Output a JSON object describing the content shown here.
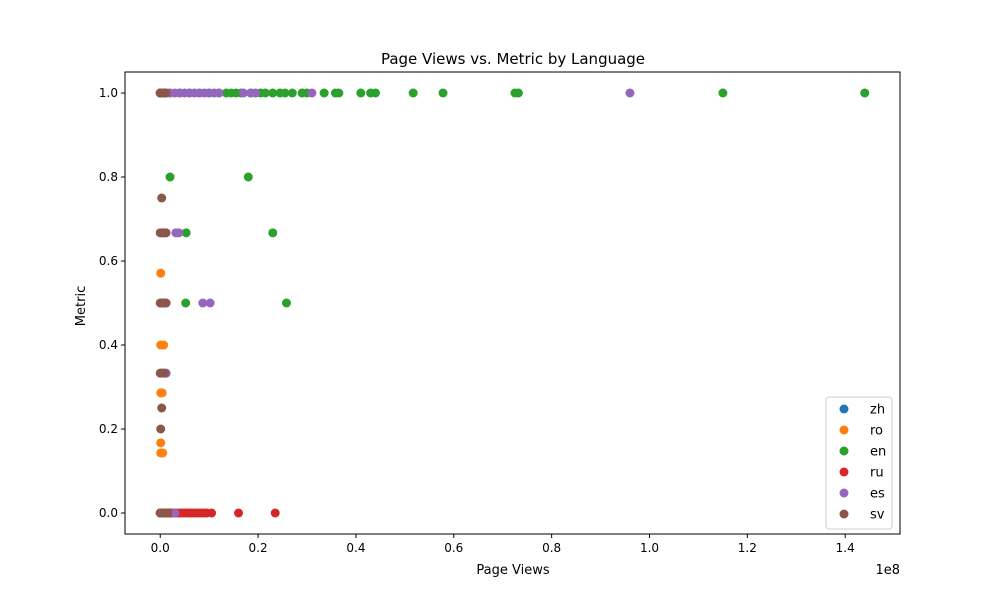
{
  "chart_data": {
    "type": "scatter",
    "title": "Page Views vs. Metric by Language",
    "xlabel": "Page Views",
    "ylabel": "Metric",
    "x_offset_label": "1e8",
    "xlim": [
      -7200000,
      151200000
    ],
    "ylim": [
      -0.05,
      1.05
    ],
    "x_ticks": [
      0,
      20000000,
      40000000,
      60000000,
      80000000,
      100000000,
      120000000,
      140000000
    ],
    "x_tick_labels": [
      "0.0",
      "0.2",
      "0.4",
      "0.6",
      "0.8",
      "1.0",
      "1.2",
      "1.4"
    ],
    "y_ticks": [
      0,
      0.2,
      0.4,
      0.6,
      0.8,
      1.0
    ],
    "y_tick_labels": [
      "0.0",
      "0.2",
      "0.4",
      "0.6",
      "0.8",
      "1.0"
    ],
    "grid": false,
    "legend_position": "bottom-right",
    "series": [
      {
        "name": "zh",
        "color": "#1f77b4",
        "points": [
          [
            0,
            0
          ],
          [
            100000,
            0
          ],
          [
            200000,
            0
          ],
          [
            300000,
            0
          ],
          [
            0,
            1.0
          ],
          [
            150000,
            1.0
          ],
          [
            300000,
            1.0
          ]
        ]
      },
      {
        "name": "ro",
        "color": "#ff7f0e",
        "points": [
          [
            0,
            0
          ],
          [
            200000,
            0
          ],
          [
            500000,
            0
          ],
          [
            100000,
            0.143
          ],
          [
            500000,
            0.143
          ],
          [
            100000,
            0.167
          ],
          [
            100000,
            0.286
          ],
          [
            400000,
            0.286
          ],
          [
            100000,
            0.4
          ],
          [
            700000,
            0.4
          ],
          [
            100000,
            0.571
          ],
          [
            0,
            1.0
          ],
          [
            300000,
            1.0
          ],
          [
            600000,
            1.0
          ]
        ]
      },
      {
        "name": "en",
        "color": "#2ca02c",
        "points": [
          [
            500000,
            0
          ],
          [
            1000000,
            0
          ],
          [
            2000000,
            0
          ],
          [
            2000000,
            0.8
          ],
          [
            18000000,
            0.8
          ],
          [
            5300000,
            0.667
          ],
          [
            23000000,
            0.667
          ],
          [
            5200000,
            0.5
          ],
          [
            25800000,
            0.5
          ],
          [
            0,
            1.0
          ],
          [
            1000000,
            1.0
          ],
          [
            2000000,
            1.0
          ],
          [
            4000000,
            1.0
          ],
          [
            6000000,
            1.0
          ],
          [
            8000000,
            1.0
          ],
          [
            10000000,
            1.0
          ],
          [
            12000000,
            1.0
          ],
          [
            13500000,
            1.0
          ],
          [
            14500000,
            1.0
          ],
          [
            15500000,
            1.0
          ],
          [
            16500000,
            1.0
          ],
          [
            18500000,
            1.0
          ],
          [
            20500000,
            1.0
          ],
          [
            21500000,
            1.0
          ],
          [
            23000000,
            1.0
          ],
          [
            24500000,
            1.0
          ],
          [
            25500000,
            1.0
          ],
          [
            27000000,
            1.0
          ],
          [
            29000000,
            1.0
          ],
          [
            30000000,
            1.0
          ],
          [
            33500000,
            1.0
          ],
          [
            35800000,
            1.0
          ],
          [
            36500000,
            1.0
          ],
          [
            41000000,
            1.0
          ],
          [
            43000000,
            1.0
          ],
          [
            44000000,
            1.0
          ],
          [
            51700000,
            1.0
          ],
          [
            57800000,
            1.0
          ],
          [
            72500000,
            1.0
          ],
          [
            73200000,
            1.0
          ],
          [
            115000000,
            1.0
          ],
          [
            144000000,
            1.0
          ]
        ]
      },
      {
        "name": "ru",
        "color": "#d62728",
        "points": [
          [
            0,
            0
          ],
          [
            500000,
            0
          ],
          [
            1000000,
            0
          ],
          [
            1500000,
            0
          ],
          [
            2000000,
            0
          ],
          [
            2500000,
            0
          ],
          [
            3000000,
            0
          ],
          [
            3500000,
            0
          ],
          [
            4000000,
            0
          ],
          [
            4500000,
            0
          ],
          [
            5000000,
            0
          ],
          [
            5500000,
            0
          ],
          [
            6000000,
            0
          ],
          [
            6500000,
            0
          ],
          [
            7000000,
            0
          ],
          [
            7500000,
            0
          ],
          [
            8000000,
            0
          ],
          [
            8500000,
            0
          ],
          [
            9000000,
            0
          ],
          [
            9500000,
            0
          ],
          [
            10500000,
            0
          ],
          [
            16000000,
            0
          ],
          [
            23500000,
            0
          ]
        ]
      },
      {
        "name": "es",
        "color": "#9467bd",
        "points": [
          [
            3000000,
            0
          ],
          [
            1200000,
            0.333
          ],
          [
            3200000,
            0.667
          ],
          [
            3800000,
            0.667
          ],
          [
            8700000,
            0.5
          ],
          [
            10200000,
            0.5
          ],
          [
            0,
            1.0
          ],
          [
            1000000,
            1.0
          ],
          [
            2000000,
            1.0
          ],
          [
            3000000,
            1.0
          ],
          [
            4000000,
            1.0
          ],
          [
            5000000,
            1.0
          ],
          [
            6000000,
            1.0
          ],
          [
            7000000,
            1.0
          ],
          [
            8000000,
            1.0
          ],
          [
            9000000,
            1.0
          ],
          [
            10000000,
            1.0
          ],
          [
            11000000,
            1.0
          ],
          [
            12000000,
            1.0
          ],
          [
            17000000,
            1.0
          ],
          [
            18500000,
            1.0
          ],
          [
            19500000,
            1.0
          ],
          [
            31000000,
            1.0
          ],
          [
            96000000,
            1.0
          ]
        ]
      },
      {
        "name": "sv",
        "color": "#8c564b",
        "points": [
          [
            0,
            0
          ],
          [
            200000,
            0
          ],
          [
            400000,
            0
          ],
          [
            600000,
            0
          ],
          [
            800000,
            0
          ],
          [
            1000000,
            0
          ],
          [
            1500000,
            0
          ],
          [
            100000,
            0.2
          ],
          [
            300000,
            0.25
          ],
          [
            0,
            0.333
          ],
          [
            300000,
            0.333
          ],
          [
            600000,
            0.333
          ],
          [
            900000,
            0.333
          ],
          [
            0,
            0.5
          ],
          [
            300000,
            0.5
          ],
          [
            600000,
            0.5
          ],
          [
            900000,
            0.5
          ],
          [
            1200000,
            0.5
          ],
          [
            0,
            0.667
          ],
          [
            300000,
            0.667
          ],
          [
            600000,
            0.667
          ],
          [
            900000,
            0.667
          ],
          [
            1200000,
            0.667
          ],
          [
            300000,
            0.75
          ],
          [
            0,
            1.0
          ],
          [
            300000,
            1.0
          ],
          [
            600000,
            1.0
          ],
          [
            900000,
            1.0
          ],
          [
            1200000,
            1.0
          ]
        ]
      }
    ]
  }
}
